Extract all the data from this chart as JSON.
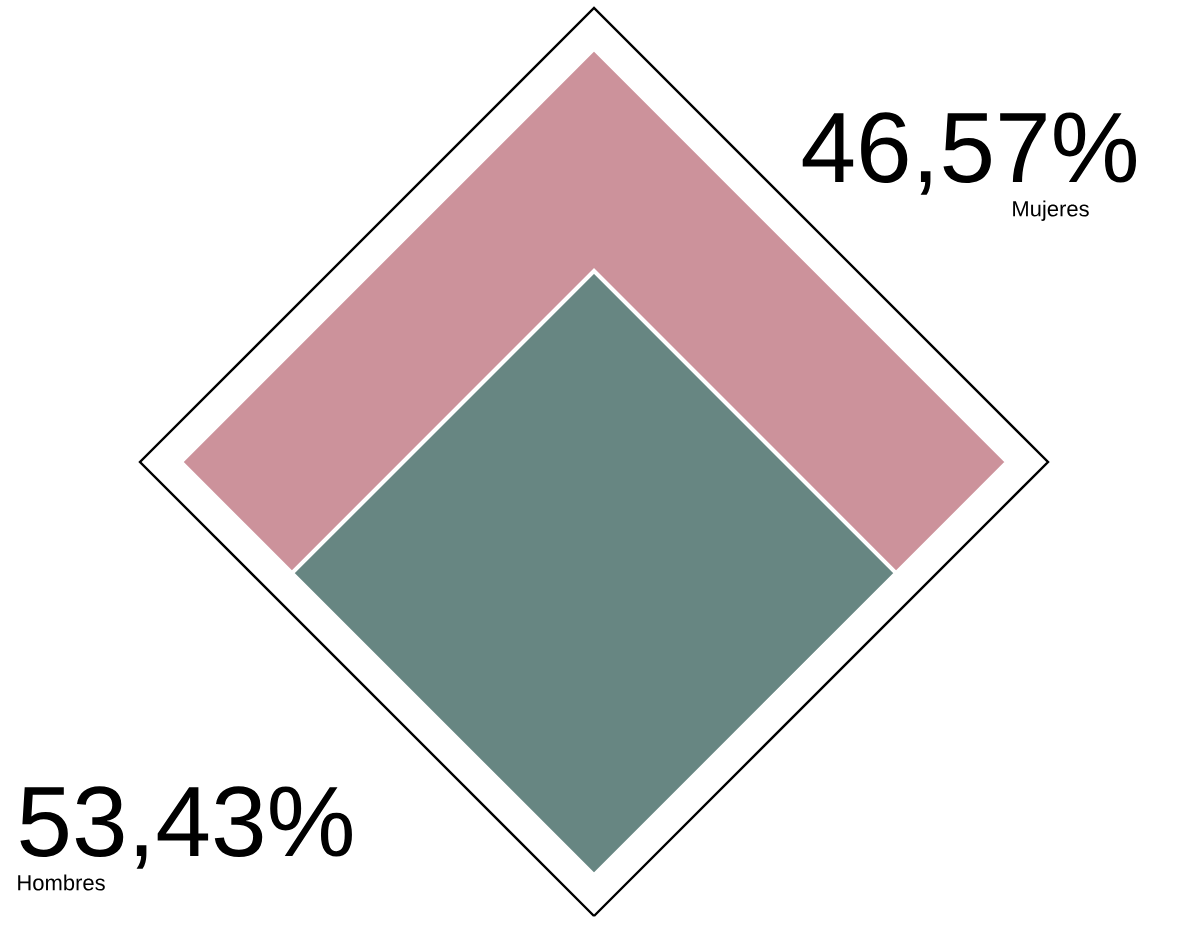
{
  "chart_data": {
    "type": "other",
    "categories": [
      "Mujeres",
      "Hombres"
    ],
    "values": [
      46.57,
      53.43
    ],
    "value_labels": [
      "46,57%",
      "53,43%"
    ],
    "colors": [
      "#cc929b",
      "#678682"
    ]
  }
}
